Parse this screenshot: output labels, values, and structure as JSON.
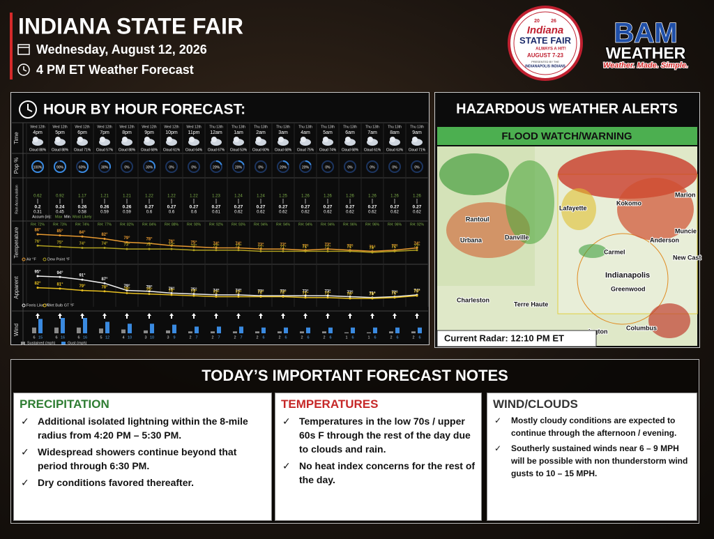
{
  "header": {
    "title": "INDIANA STATE FAIR",
    "date": "Wednesday, August 12, 2026",
    "forecast_time": "4 PM ET Weather Forecast"
  },
  "fair_logo": {
    "year_left": "20",
    "year_right": "26",
    "line1": "Indiana",
    "line2": "STATE FAIR",
    "tagline": "ALWAYS A HIT!",
    "dates": "AUGUST 7-23",
    "presented": "PRESENTED BY THE",
    "sponsor": "INDIANAPOLIS INDIANS"
  },
  "bam_logo": {
    "name": "BAM",
    "sub": "WEATHER",
    "tagline": "Weather. Made. Simple."
  },
  "hourly": {
    "title": "HOUR BY HOUR FORECAST:",
    "row_labels": {
      "time": "Time",
      "pop": "Pop %",
      "rain": "Rain Accumulation",
      "temperature": "Temperature",
      "apparent": "Apparent",
      "wind": "Wind"
    },
    "days": [
      "Wed 12th",
      "Wed 12th",
      "Wed 12th",
      "Wed 12th",
      "Wed 12th",
      "Wed 12th",
      "Wed 12th",
      "Wed 12th",
      "Thu 13th",
      "Thu 13th",
      "Thu 13th",
      "Thu 13th",
      "Thu 13th",
      "Thu 13th",
      "Thu 13th",
      "Thu 13th",
      "Thu 13th",
      "Thu 13th"
    ],
    "times": [
      "4pm",
      "5pm",
      "6pm",
      "7pm",
      "8pm",
      "9pm",
      "10pm",
      "11pm",
      "12am",
      "1am",
      "2am",
      "3am",
      "4am",
      "5am",
      "6am",
      "7am",
      "8am",
      "9am"
    ],
    "cloud": [
      "Cloud 88%",
      "Cloud 88%",
      "Cloud 71%",
      "Cloud 57%",
      "Cloud 88%",
      "Cloud 68%",
      "Cloud 61%",
      "Cloud 64%",
      "Cloud 67%",
      "Cloud 53%",
      "Cloud 60%",
      "Cloud 68%",
      "Cloud 75%",
      "Cloud 74%",
      "Cloud 68%",
      "Cloud 61%",
      "Cloud 63%",
      "Cloud 71%"
    ],
    "pop": [
      100,
      90,
      60,
      30,
      0,
      30,
      0,
      0,
      20,
      20,
      0,
      20,
      20,
      0,
      0,
      0,
      0,
      0
    ],
    "pop_labels": [
      "100%",
      "90%",
      "60%",
      "30%",
      "0%",
      "30%",
      "0%",
      "0%",
      "20%",
      "20%",
      "0%",
      "20%",
      "20%",
      "0%",
      "0%",
      "0%",
      "0%",
      "0%"
    ],
    "rain_max": [
      "0.62",
      "0.92",
      "1.17",
      "1.21",
      "1.21",
      "1.22",
      "1.22",
      "1.22",
      "1.23",
      "1.24",
      "1.24",
      "1.25",
      "1.26",
      "1.26",
      "1.26",
      "1.26",
      "1.26",
      "1.26"
    ],
    "rain_likely": [
      "0.2",
      "0.24",
      "0.26",
      "0.26",
      "0.26",
      "0.27",
      "0.27",
      "0.27",
      "0.27",
      "0.27",
      "0.27",
      "0.27",
      "0.27",
      "0.27",
      "0.27",
      "0.27",
      "0.27",
      "0.27"
    ],
    "rain_min": [
      "0.31",
      "0.45",
      "0.58",
      "0.59",
      "0.59",
      "0.6",
      "0.6",
      "0.6",
      "0.61",
      "0.62",
      "0.62",
      "0.62",
      "0.62",
      "0.62",
      "0.62",
      "0.62",
      "0.62",
      "0.62"
    ],
    "rain_legend": {
      "label": "Accum (in):",
      "max": "Max",
      "min": "Min",
      "likely": "Most Likely"
    },
    "rh": [
      "RH: 72%",
      "RH: 73%",
      "RH: 74%",
      "RH: 77%",
      "RH: 82%",
      "RH: 84%",
      "RH: 88%",
      "RH: 90%",
      "RH: 92%",
      "RH: 93%",
      "RH: 94%",
      "RH: 94%",
      "RH: 94%",
      "RH: 94%",
      "RH: 96%",
      "RH: 96%",
      "RH: 96%",
      "RH: 92%"
    ],
    "temperature": {
      "air": [
        86,
        85,
        84,
        82,
        79,
        78,
        76,
        75,
        74,
        74,
        73,
        73,
        72,
        73,
        72,
        71,
        72,
        74
      ],
      "air_labels": [
        "86°",
        "85°",
        "84°",
        "82°",
        "79°",
        "78°",
        "76°",
        "75°",
        "74°",
        "74°",
        "73°",
        "73°",
        "72°",
        "73°",
        "72°",
        "71°",
        "72°",
        "74°"
      ],
      "dew": [
        76,
        75,
        74,
        74,
        73,
        73,
        73,
        72,
        72,
        72,
        71,
        71,
        71,
        71,
        71,
        70,
        71,
        72
      ],
      "dew_labels": [
        "76°",
        "75°",
        "74°",
        "74°",
        "73°",
        "73°",
        "73°",
        "72°",
        "72°",
        "72°",
        "71°",
        "71°",
        "71°",
        "71°",
        "71°",
        "70°",
        "71°",
        "72°"
      ],
      "legend_air": "Air °F",
      "legend_dew": "Dew Point °F"
    },
    "apparent": {
      "feels": [
        95,
        94,
        91,
        87,
        79,
        78,
        76,
        75,
        74,
        74,
        73,
        73,
        73,
        73,
        72,
        71,
        72,
        74
      ],
      "feels_labels": [
        "95°",
        "94°",
        "91°",
        "87°",
        "79°",
        "78°",
        "76°",
        "75°",
        "74°",
        "74°",
        "73°",
        "73°",
        "73°",
        "73°",
        "72°",
        "71°",
        "72°",
        "74°"
      ],
      "wetbulb": [
        82,
        81,
        79,
        78,
        76,
        75,
        74,
        73,
        72,
        72,
        72,
        72,
        71,
        71,
        70,
        70,
        71,
        73
      ],
      "wetbulb_labels": [
        "82°",
        "81°",
        "79°",
        "78°",
        "76°",
        "75°",
        "74°",
        "73°",
        "72°",
        "72°",
        "72°",
        "72°",
        "71°",
        "71°",
        "70°",
        "70°",
        "71°",
        "73°"
      ],
      "legend_feels": "Feels Like °F",
      "legend_wetbulb": "Wet Bulb GT °F"
    },
    "wind": {
      "sustained": [
        6,
        6,
        6,
        5,
        4,
        3,
        3,
        2,
        2,
        2,
        2,
        2,
        2,
        2,
        1,
        1,
        2,
        2
      ],
      "gust": [
        15,
        16,
        16,
        12,
        10,
        10,
        9,
        7,
        7,
        7,
        6,
        6,
        6,
        6,
        6,
        6,
        6,
        6
      ],
      "legend_sustained": "Sustained (mph)",
      "legend_gust": "Gust (mph)"
    }
  },
  "alerts": {
    "title": "HAZARDOUS WEATHER ALERTS",
    "banner": "FLOOD WATCH/WARNING",
    "caption": "Current Radar: 12:10 PM ET",
    "cities": [
      "Rantoul",
      "Urbana",
      "Danville",
      "Lafayette",
      "Kokomo",
      "Marion",
      "Muncie",
      "Anderson",
      "Carmel",
      "New Cast",
      "Indianapolis",
      "Greenwood",
      "Charleston",
      "Terre Haute",
      "ington",
      "Columbus"
    ]
  },
  "notes": {
    "title": "TODAY’S IMPORTANT FORECAST NOTES",
    "sections": [
      {
        "heading": "PRECIPITATION",
        "items": [
          "Additional isolated lightning within the 8-mile radius from 4:20 PM – 5:30 PM.",
          "Widespread showers continue beyond that period through 6:30 PM.",
          "Dry conditions favored thereafter."
        ]
      },
      {
        "heading": "TEMPERATURES",
        "items": [
          "Temperatures in the low 70s / upper 60s F through the rest of the day due to clouds and rain.",
          "No heat index concerns for the rest of the day."
        ]
      },
      {
        "heading": "WIND/CLOUDS",
        "items": [
          "Mostly cloudy conditions are expected to continue through the afternoon / evening.",
          "Southerly sustained winds near 6 – 9 MPH will be possible with non thunderstorm wind gusts to 10 – 15 MPH."
        ]
      }
    ]
  }
}
